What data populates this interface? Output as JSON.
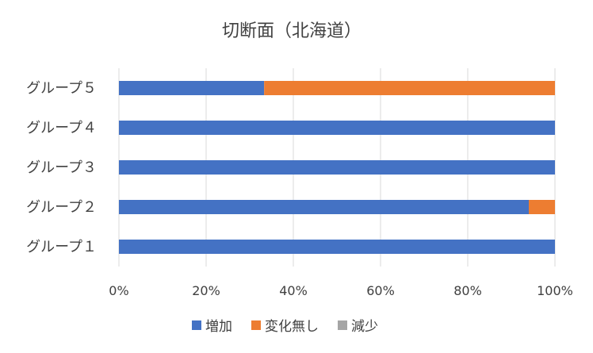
{
  "chart_data": {
    "type": "bar",
    "orientation": "horizontal",
    "stacked": "percent",
    "title": "切断面（北海道）",
    "categories": [
      "グループ１",
      "グループ２",
      "グループ３",
      "グループ４",
      "グループ５"
    ],
    "series": [
      {
        "name": "増加",
        "color": "#4472C4",
        "values": [
          100,
          94,
          100,
          100,
          33.3
        ]
      },
      {
        "name": "変化無し",
        "color": "#ED7D31",
        "values": [
          0,
          6,
          0,
          0,
          66.7
        ]
      },
      {
        "name": "減少",
        "color": "#A5A5A5",
        "values": [
          0,
          0,
          0,
          0,
          0
        ]
      }
    ],
    "xaxis": {
      "ticks": [
        "0%",
        "20%",
        "40%",
        "60%",
        "80%",
        "100%"
      ],
      "xlim": [
        0,
        100
      ]
    },
    "grid": true,
    "legend": "bottom"
  }
}
